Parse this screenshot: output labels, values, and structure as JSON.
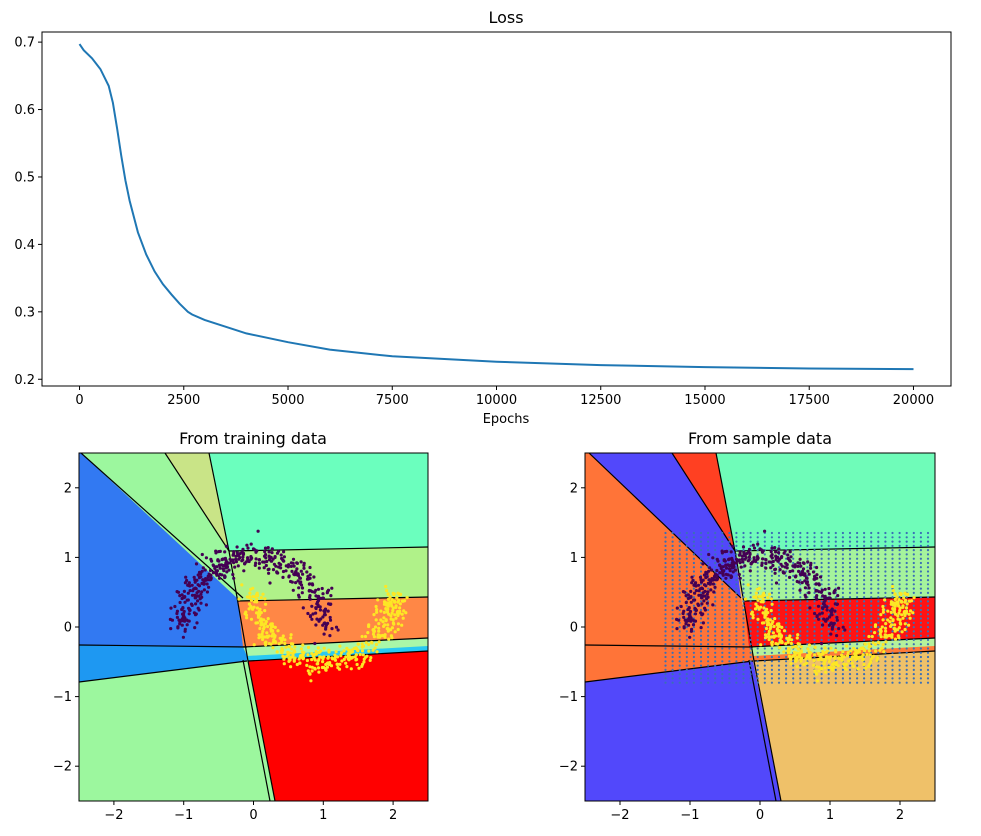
{
  "chart_data": [
    {
      "type": "line",
      "title": "Loss",
      "xlabel": "Epochs",
      "ylabel": "",
      "xlim": [
        -900,
        20900
      ],
      "ylim": [
        0.19,
        0.715
      ],
      "x_ticks": [
        0,
        2500,
        5000,
        7500,
        10000,
        12500,
        15000,
        17500,
        20000
      ],
      "x_tick_labels": [
        "0",
        "2500",
        "5000",
        "7500",
        "10000",
        "12500",
        "15000",
        "17500",
        "20000"
      ],
      "y_ticks": [
        0.2,
        0.3,
        0.4,
        0.5,
        0.6,
        0.7
      ],
      "y_tick_labels": [
        "0.2",
        "0.3",
        "0.4",
        "0.5",
        "0.6",
        "0.7"
      ],
      "grid": false,
      "color": "#1f77b4",
      "x": [
        0,
        100,
        300,
        500,
        700,
        800,
        900,
        1000,
        1100,
        1200,
        1400,
        1600,
        1800,
        2000,
        2200,
        2400,
        2600,
        2700,
        3000,
        3500,
        4000,
        5000,
        6000,
        7500,
        10000,
        12500,
        15000,
        17500,
        20000
      ],
      "y": [
        0.697,
        0.688,
        0.676,
        0.66,
        0.635,
        0.61,
        0.572,
        0.532,
        0.495,
        0.465,
        0.418,
        0.385,
        0.36,
        0.341,
        0.326,
        0.312,
        0.3,
        0.296,
        0.288,
        0.278,
        0.268,
        0.255,
        0.244,
        0.234,
        0.226,
        0.221,
        0.218,
        0.216,
        0.215
      ]
    },
    {
      "type": "scatter",
      "title": "From training data",
      "xlim": [
        -2.5,
        2.5
      ],
      "ylim": [
        -2.5,
        2.5
      ],
      "x_ticks": [
        -2,
        -1,
        0,
        1,
        2
      ],
      "x_tick_labels": [
        "−2",
        "−1",
        "0",
        "1",
        "2"
      ],
      "y_ticks": [
        -2,
        -1,
        0,
        1,
        2
      ],
      "y_tick_labels": [
        "−2",
        "−1",
        "0",
        "1",
        "2"
      ],
      "background": "linear decision regions (piecewise-linear partition of the plane)",
      "region_colors": [
        "#3279f2",
        "#1e98f2",
        "#9cf79e",
        "#c9e487",
        "#6bffbe",
        "#b0f289",
        "#ff8746",
        "#ff0000",
        "#a9f7a8",
        "#2ac9f2"
      ],
      "point_colors": {
        "class_0": "#440154",
        "class_1": "#fde725"
      },
      "points": "two interleaving half-moons, ~400 points each"
    },
    {
      "type": "scatter",
      "title": "From sample data",
      "xlim": [
        -2.5,
        2.5
      ],
      "ylim": [
        -2.5,
        2.5
      ],
      "x_ticks": [
        -2,
        -1,
        0,
        1,
        2
      ],
      "x_tick_labels": [
        "−2",
        "−1",
        "0",
        "1",
        "2"
      ],
      "y_ticks": [
        -2,
        -1,
        0,
        1,
        2
      ],
      "y_tick_labels": [
        "−2",
        "−1",
        "0",
        "1",
        "2"
      ],
      "background": "linear decision regions (piecewise-linear partition of the plane)",
      "region_colors": [
        "#ff7438",
        "#ff7438",
        "#5248fb",
        "#ff4022",
        "#6ffcb9",
        "#a5f39c",
        "#ff1313",
        "#efc169",
        "#b4f29c",
        "#ff7a38"
      ],
      "point_colors": {
        "class_0": "#440154",
        "class_1": "#fde725",
        "samples": "#3b6fb6"
      },
      "sample_grid": {
        "x_range": [
          -1.35,
          2.4
        ],
        "y_range": [
          -0.8,
          1.35
        ]
      },
      "points": "two interleaving half-moons plus a regular sample grid"
    }
  ]
}
